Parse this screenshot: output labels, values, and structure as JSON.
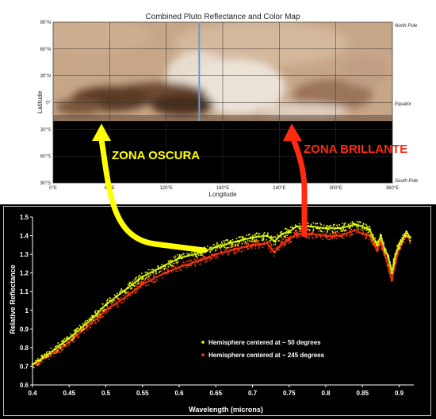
{
  "map": {
    "title": "Combined Pluto Reflectance and Color Map",
    "xlabel": "Longitude",
    "ylabel": "Latitude",
    "lon_ticks": [
      "0°E",
      "60°E",
      "120°E",
      "180°E",
      "240°E",
      "300°E",
      "360°E"
    ],
    "lat_ticks": [
      "90°N",
      "60°N",
      "30°N",
      "0°",
      "30°S",
      "60°S",
      "90°S"
    ],
    "pole_labels": {
      "north": "North Pole",
      "equator": "Equator",
      "south": "South Pole"
    },
    "meridian_lon": 155
  },
  "annotations": {
    "dark_zone": {
      "text": "ZONA OSCURA",
      "color": "#ffff00"
    },
    "bright_zone": {
      "text": "ZONA BRILLANTE",
      "color": "#ff2a10"
    }
  },
  "colors": {
    "series_50": "#e4ff10",
    "series_245": "#ff3a10"
  },
  "chart_data": {
    "type": "scatter",
    "xlabel": "Wavelength (microns)",
    "ylabel": "Relative Reflectance",
    "xlim": [
      0.4,
      0.92
    ],
    "ylim": [
      0.6,
      1.5
    ],
    "x_ticks": [
      "0.4",
      "0.45",
      "0.5",
      "0.55",
      "0.6",
      "0.65",
      "0.7",
      "0.75",
      "0.8",
      "0.85",
      "0.9"
    ],
    "y_ticks": [
      "0.6",
      "0.7",
      "0.8",
      "0.9",
      "1",
      "1.1",
      "1.2",
      "1.3",
      "1.4",
      "1.5"
    ],
    "legend_position": "lower-right",
    "series": [
      {
        "name": "Hemisphere centered at ~ 50 degrees",
        "x": [
          0.4,
          0.42,
          0.45,
          0.48,
          0.5,
          0.53,
          0.55,
          0.58,
          0.6,
          0.63,
          0.65,
          0.68,
          0.7,
          0.72,
          0.73,
          0.74,
          0.75,
          0.76,
          0.78,
          0.8,
          0.82,
          0.84,
          0.85,
          0.86,
          0.87,
          0.875,
          0.88,
          0.885,
          0.89,
          0.895,
          0.9,
          0.91,
          0.915
        ],
        "y": [
          0.71,
          0.76,
          0.85,
          0.95,
          1.03,
          1.12,
          1.18,
          1.24,
          1.28,
          1.31,
          1.34,
          1.37,
          1.39,
          1.4,
          1.37,
          1.41,
          1.42,
          1.45,
          1.45,
          1.44,
          1.44,
          1.46,
          1.45,
          1.43,
          1.35,
          1.4,
          1.33,
          1.29,
          1.2,
          1.3,
          1.35,
          1.42,
          1.39
        ]
      },
      {
        "name": "Hemisphere centered at ~ 245 degrees",
        "x": [
          0.4,
          0.42,
          0.45,
          0.48,
          0.5,
          0.53,
          0.55,
          0.58,
          0.6,
          0.63,
          0.65,
          0.68,
          0.7,
          0.72,
          0.73,
          0.74,
          0.75,
          0.76,
          0.78,
          0.8,
          0.82,
          0.84,
          0.85,
          0.86,
          0.87,
          0.875,
          0.88,
          0.885,
          0.89,
          0.895,
          0.9,
          0.91,
          0.915
        ],
        "y": [
          0.71,
          0.75,
          0.83,
          0.93,
          1.0,
          1.08,
          1.14,
          1.2,
          1.23,
          1.27,
          1.3,
          1.33,
          1.35,
          1.36,
          1.31,
          1.36,
          1.38,
          1.41,
          1.41,
          1.4,
          1.4,
          1.43,
          1.41,
          1.4,
          1.32,
          1.37,
          1.3,
          1.24,
          1.16,
          1.26,
          1.33,
          1.41,
          1.37
        ]
      }
    ]
  }
}
